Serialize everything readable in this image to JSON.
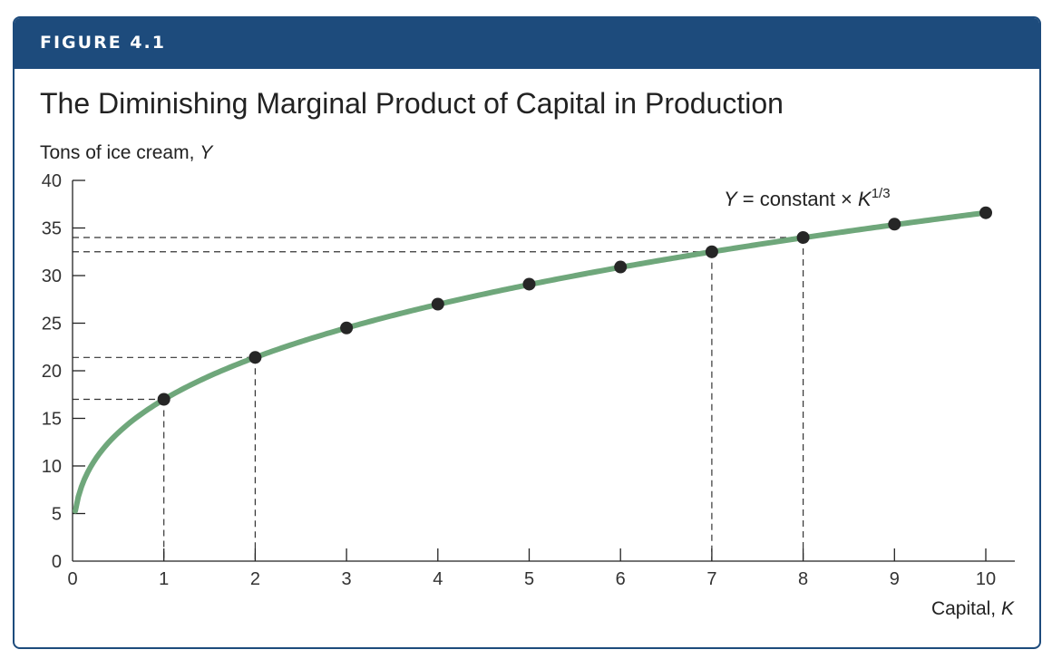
{
  "figure": {
    "label": "FIGURE 4.1",
    "title": "The Diminishing Marginal Product of Capital in Production",
    "banner_color": "#1d4b7c"
  },
  "chart_data": {
    "type": "line",
    "title": "The Diminishing Marginal Product of Capital in Production",
    "ylabel": {
      "text": "Tons of ice cream, ",
      "var": "Y"
    },
    "xlabel": {
      "text": "Capital, ",
      "var": "K"
    },
    "annotation": {
      "var": "Y",
      "text": " = constant × ",
      "var2": "K",
      "exponent": "1/3"
    },
    "xlim": [
      0,
      10
    ],
    "ylim": [
      0,
      40
    ],
    "x_ticks": [
      "0",
      "1",
      "2",
      "3",
      "4",
      "5",
      "6",
      "7",
      "8",
      "9",
      "10"
    ],
    "y_ticks": [
      "0",
      "5",
      "10",
      "15",
      "20",
      "25",
      "30",
      "35",
      "40"
    ],
    "points": [
      {
        "x": 1,
        "y": 17.0
      },
      {
        "x": 2,
        "y": 21.4
      },
      {
        "x": 3,
        "y": 24.5
      },
      {
        "x": 4,
        "y": 27.0
      },
      {
        "x": 5,
        "y": 29.1
      },
      {
        "x": 6,
        "y": 30.9
      },
      {
        "x": 7,
        "y": 32.5
      },
      {
        "x": 8,
        "y": 34.0
      },
      {
        "x": 9,
        "y": 35.4
      },
      {
        "x": 10,
        "y": 36.6
      }
    ],
    "dashed_guides_at_x": [
      1,
      2,
      7,
      8
    ],
    "curve_color": "#6fa77b",
    "point_color": "#262626",
    "grid": false
  }
}
